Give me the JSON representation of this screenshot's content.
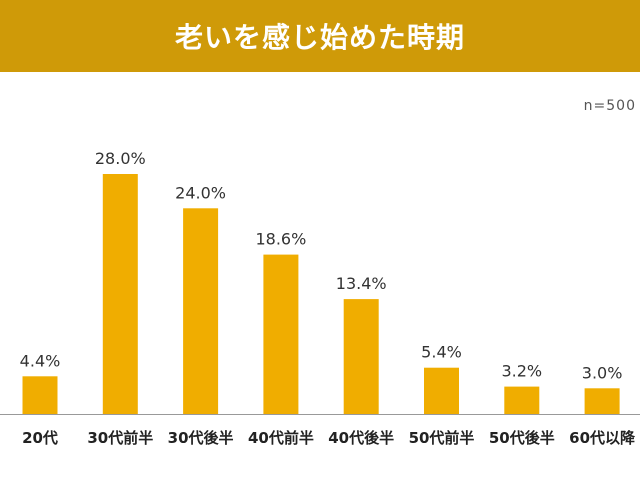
{
  "header": {
    "title": "老いを感じ始めた時期"
  },
  "sample_size": "n=500",
  "colors": {
    "header_bg": "#cf9a08",
    "bar": "#f0ad00",
    "axis": "#999999"
  },
  "chart_data": {
    "type": "bar",
    "title": "老いを感じ始めた時期",
    "xlabel": "",
    "ylabel": "",
    "unit": "%",
    "categories": [
      "20代",
      "30代前半",
      "30代後半",
      "40代前半",
      "40代後半",
      "50代前半",
      "50代後半",
      "60代以降"
    ],
    "values": [
      4.4,
      28.0,
      24.0,
      18.6,
      13.4,
      5.4,
      3.2,
      3.0
    ],
    "value_labels": [
      "4.4%",
      "28.0%",
      "24.0%",
      "18.6%",
      "13.4%",
      "5.4%",
      "3.2%",
      "3.0%"
    ],
    "ylim": [
      0,
      28.0
    ],
    "grid": false,
    "legend": "none"
  }
}
